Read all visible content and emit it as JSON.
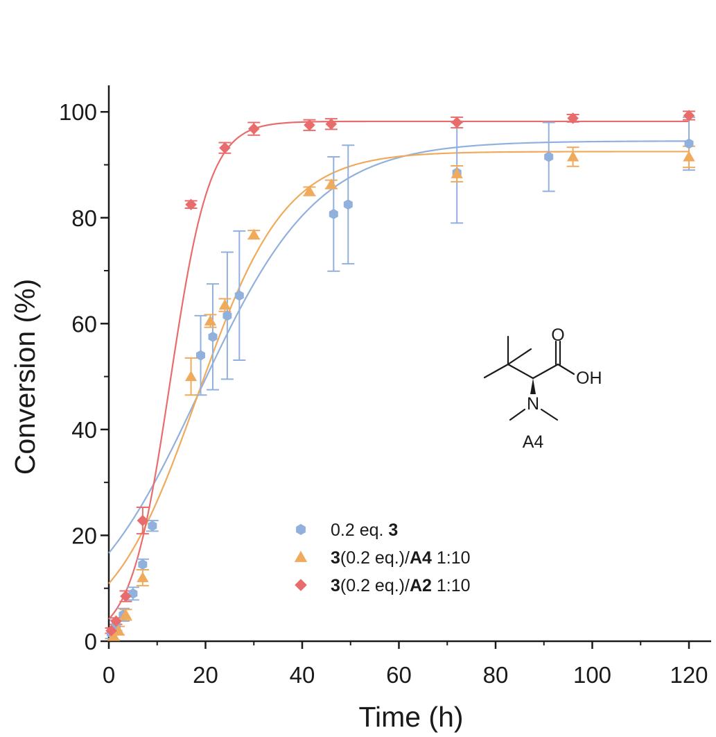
{
  "chart_data": {
    "type": "scatter",
    "xlabel": "Time (h)",
    "ylabel": "Conversion (%)",
    "xlim": [
      0,
      125
    ],
    "ylim": [
      0,
      105
    ],
    "xticks": [
      0,
      20,
      40,
      60,
      80,
      100,
      120
    ],
    "yticks": [
      0,
      20,
      40,
      60,
      80,
      100
    ],
    "xtick_labels": [
      "0",
      "20",
      "40",
      "60",
      "80",
      "100",
      "120"
    ],
    "ytick_labels": [
      "0",
      "20",
      "40",
      "60",
      "80",
      "100"
    ],
    "series": [
      {
        "name": "0.2 eq. 3",
        "legend_parts": [
          {
            "text": "0.2 eq. ",
            "bold": false
          },
          {
            "text": "3",
            "bold": true
          }
        ],
        "marker": "hexagon",
        "color": "#92b0dc",
        "fit": {
          "model": "sigmoid",
          "A": 94.5,
          "x0": 18.8,
          "k": 0.082
        },
        "points": [
          {
            "x": 0.5,
            "y": 1.5,
            "err": 1.0
          },
          {
            "x": 1.5,
            "y": 3.0,
            "err": 1.0
          },
          {
            "x": 3.0,
            "y": 5.0,
            "err": 1.2
          },
          {
            "x": 5.0,
            "y": 9.0,
            "err": 1.2
          },
          {
            "x": 7.0,
            "y": 14.5,
            "err": 1.0
          },
          {
            "x": 9.0,
            "y": 21.8,
            "err": 1.0
          },
          {
            "x": 19.0,
            "y": 54.0,
            "err": 7.5
          },
          {
            "x": 21.5,
            "y": 57.5,
            "err": 10.0
          },
          {
            "x": 24.5,
            "y": 61.5,
            "err": 12.0
          },
          {
            "x": 27.0,
            "y": 65.3,
            "err": 12.2
          },
          {
            "x": 46.5,
            "y": 80.7,
            "err": 10.8
          },
          {
            "x": 49.5,
            "y": 82.5,
            "err": 11.2
          },
          {
            "x": 72.0,
            "y": 88.5,
            "err": 9.5
          },
          {
            "x": 91.0,
            "y": 91.5,
            "err": 6.5
          },
          {
            "x": 120.0,
            "y": 94.0,
            "err": 5.0
          }
        ]
      },
      {
        "name": "3(0.2 eq.)/A4 1:10",
        "legend_parts": [
          {
            "text": "3",
            "bold": true
          },
          {
            "text": "(0.2 eq.)/",
            "bold": false
          },
          {
            "text": "A4",
            "bold": true
          },
          {
            "text": " 1:10",
            "bold": false
          }
        ],
        "marker": "triangle",
        "color": "#f0aa5c",
        "fit": {
          "model": "sigmoid",
          "A": 92.5,
          "x0": 18.3,
          "k": 0.11
        },
        "points": [
          {
            "x": 1.0,
            "y": 1.0,
            "err": 0.8
          },
          {
            "x": 2.0,
            "y": 2.0,
            "err": 0.8
          },
          {
            "x": 3.5,
            "y": 5.0,
            "err": 1.0
          },
          {
            "x": 7.0,
            "y": 12.0,
            "err": 1.5
          },
          {
            "x": 17.0,
            "y": 50.0,
            "err": 3.5
          },
          {
            "x": 21.0,
            "y": 60.5,
            "err": 1.2
          },
          {
            "x": 24.0,
            "y": 63.5,
            "err": 1.2
          },
          {
            "x": 30.0,
            "y": 76.8,
            "err": 0.8
          },
          {
            "x": 41.5,
            "y": 85.0,
            "err": 0.8
          },
          {
            "x": 46.0,
            "y": 86.3,
            "err": 0.8
          },
          {
            "x": 72.0,
            "y": 88.3,
            "err": 1.5
          },
          {
            "x": 96.0,
            "y": 91.5,
            "err": 1.8
          },
          {
            "x": 120.0,
            "y": 91.5,
            "err": 2.0
          }
        ]
      },
      {
        "name": "3(0.2 eq.)/A2 1:10",
        "legend_parts": [
          {
            "text": "3",
            "bold": true
          },
          {
            "text": "(0.2 eq.)/",
            "bold": false
          },
          {
            "text": "A2",
            "bold": true
          },
          {
            "text": " 1:10",
            "bold": false
          }
        ],
        "marker": "diamond",
        "color": "#e86c6c",
        "fit": {
          "model": "sigmoid",
          "A": 98.2,
          "x0": 12.7,
          "k": 0.245
        },
        "points": [
          {
            "x": 0.5,
            "y": 2.0,
            "err": 0.5
          },
          {
            "x": 1.5,
            "y": 3.8,
            "err": 0.6
          },
          {
            "x": 3.5,
            "y": 8.5,
            "err": 1.0
          },
          {
            "x": 7.0,
            "y": 22.8,
            "err": 2.5
          },
          {
            "x": 17.0,
            "y": 82.5,
            "err": 0.7
          },
          {
            "x": 24.0,
            "y": 93.2,
            "err": 1.0
          },
          {
            "x": 30.0,
            "y": 96.8,
            "err": 1.2
          },
          {
            "x": 41.5,
            "y": 97.5,
            "err": 1.0
          },
          {
            "x": 46.0,
            "y": 97.7,
            "err": 1.0
          },
          {
            "x": 72.0,
            "y": 98.0,
            "err": 1.0
          },
          {
            "x": 96.0,
            "y": 98.8,
            "err": 0.7
          },
          {
            "x": 120.0,
            "y": 99.3,
            "err": 0.8
          }
        ]
      }
    ],
    "inset": {
      "atom_labels": {
        "carbonyl_o": "O",
        "hydroxyl": "OH",
        "nitrogen": "N"
      },
      "compound_label": "A4"
    }
  }
}
